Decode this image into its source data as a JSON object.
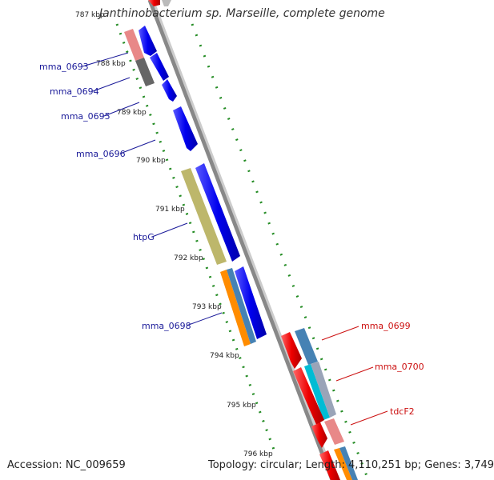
{
  "title": "Janthinobacterium sp. Marseille, complete genome",
  "footer": {
    "accession": "Accession: NC_009659",
    "summary": "Topology: circular; Length: 4,110,251 bp; Genes: 3,749"
  },
  "axis_ticks": [
    "787 kbp",
    "788 kbp",
    "789 kbp",
    "790 kbp",
    "791 kbp",
    "792 kbp",
    "793 kbp",
    "794 kbp",
    "795 kbp",
    "796 kbp"
  ],
  "gene_labels_left": [
    "mma_0693",
    "mma_0694",
    "mma_0695",
    "mma_0696",
    "htpG",
    "mma_0698"
  ],
  "gene_labels_right": [
    "mma_0699",
    "mma_0700",
    "tdcF2"
  ],
  "colors": {
    "forward_cds": "#0000ee",
    "reverse_cds": "#ee0000",
    "backbone": "#808080",
    "ticks": "#228b22",
    "label_left": "#1a1a99",
    "label_right": "#cc1111",
    "cog_pink": "#e88888",
    "cog_gray": "#666666",
    "cog_olive": "#bdb76b",
    "cog_orange": "#ff8c00",
    "cog_steelblue": "#4682b4",
    "cog_cyan": "#00bcd4"
  }
}
